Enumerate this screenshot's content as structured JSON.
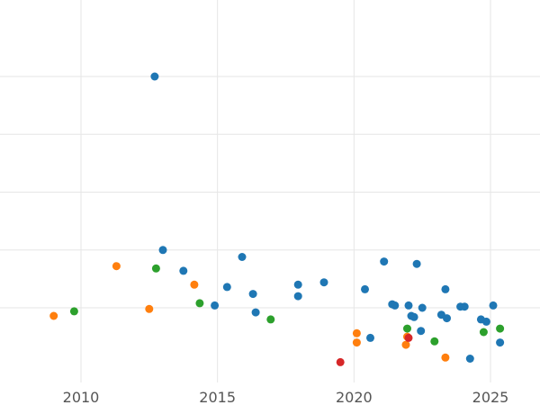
{
  "chart_data": {
    "type": "scatter",
    "title": "",
    "xlabel": "",
    "ylabel": "",
    "xlim": [
      2007.0,
      2026.8
    ],
    "ylim": [
      -0.28,
      1.19
    ],
    "x_ticks": [
      2010,
      2015,
      2020,
      2025
    ],
    "x_tick_labels": [
      "2010",
      "2015",
      "2020",
      "2025"
    ],
    "y_gridlines": [
      0,
      0.25,
      0.5,
      0.75,
      1.0
    ],
    "y_tick_labels_visible": false,
    "grid": true,
    "legend": "none",
    "series": [
      {
        "color": "#1f77b4",
        "points": [
          {
            "x": 2012.7,
            "y": 1.0
          },
          {
            "x": 2013.0,
            "y": 0.25
          },
          {
            "x": 2013.75,
            "y": 0.16
          },
          {
            "x": 2014.9,
            "y": 0.01
          },
          {
            "x": 2015.35,
            "y": 0.09
          },
          {
            "x": 2015.9,
            "y": 0.22
          },
          {
            "x": 2016.3,
            "y": 0.06
          },
          {
            "x": 2016.4,
            "y": -0.02
          },
          {
            "x": 2017.95,
            "y": 0.1
          },
          {
            "x": 2017.95,
            "y": 0.05
          },
          {
            "x": 2018.9,
            "y": 0.11
          },
          {
            "x": 2020.4,
            "y": 0.08
          },
          {
            "x": 2020.6,
            "y": -0.13
          },
          {
            "x": 2021.1,
            "y": 0.2
          },
          {
            "x": 2021.4,
            "y": 0.015
          },
          {
            "x": 2021.5,
            "y": 0.01
          },
          {
            "x": 2022.0,
            "y": 0.01
          },
          {
            "x": 2022.1,
            "y": -0.035
          },
          {
            "x": 2022.2,
            "y": -0.04
          },
          {
            "x": 2022.3,
            "y": 0.19
          },
          {
            "x": 2022.45,
            "y": -0.1
          },
          {
            "x": 2022.5,
            "y": 0.0
          },
          {
            "x": 2023.2,
            "y": -0.03
          },
          {
            "x": 2023.35,
            "y": 0.08
          },
          {
            "x": 2023.4,
            "y": -0.045
          },
          {
            "x": 2023.9,
            "y": 0.005
          },
          {
            "x": 2024.05,
            "y": 0.005
          },
          {
            "x": 2024.25,
            "y": -0.22
          },
          {
            "x": 2024.65,
            "y": -0.05
          },
          {
            "x": 2024.85,
            "y": -0.06
          },
          {
            "x": 2025.1,
            "y": 0.01
          },
          {
            "x": 2025.35,
            "y": -0.15
          }
        ]
      },
      {
        "color": "#ff7f0e",
        "points": [
          {
            "x": 2009.0,
            "y": -0.035
          },
          {
            "x": 2011.3,
            "y": 0.18
          },
          {
            "x": 2012.5,
            "y": -0.005
          },
          {
            "x": 2014.15,
            "y": 0.1
          },
          {
            "x": 2020.1,
            "y": -0.11
          },
          {
            "x": 2020.1,
            "y": -0.15
          },
          {
            "x": 2021.9,
            "y": -0.16
          },
          {
            "x": 2021.95,
            "y": -0.125
          },
          {
            "x": 2023.35,
            "y": -0.215
          }
        ]
      },
      {
        "color": "#2ca02c",
        "points": [
          {
            "x": 2009.75,
            "y": -0.015
          },
          {
            "x": 2012.75,
            "y": 0.17
          },
          {
            "x": 2014.35,
            "y": 0.02
          },
          {
            "x": 2016.95,
            "y": -0.05
          },
          {
            "x": 2021.95,
            "y": -0.09
          },
          {
            "x": 2022.95,
            "y": -0.145
          },
          {
            "x": 2024.75,
            "y": -0.105
          },
          {
            "x": 2025.35,
            "y": -0.09
          }
        ]
      },
      {
        "color": "#d62728",
        "points": [
          {
            "x": 2019.5,
            "y": -0.235
          },
          {
            "x": 2022.0,
            "y": -0.13
          }
        ]
      }
    ]
  }
}
